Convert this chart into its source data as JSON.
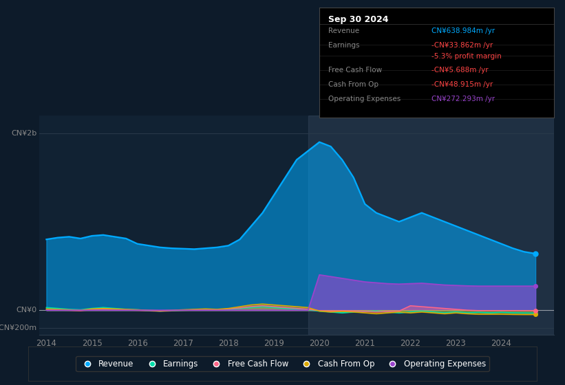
{
  "background_color": "#0d1b2a",
  "plot_bg_color": "#112233",
  "colors": {
    "revenue": "#00aaff",
    "earnings": "#00ddaa",
    "free_cash_flow": "#ff6688",
    "cash_from_op": "#ddaa00",
    "operating_expenses": "#9944cc"
  },
  "legend": [
    {
      "label": "Revenue",
      "color": "#00aaff"
    },
    {
      "label": "Earnings",
      "color": "#00ddaa"
    },
    {
      "label": "Free Cash Flow",
      "color": "#ff6688"
    },
    {
      "label": "Cash From Op",
      "color": "#ddaa00"
    },
    {
      "label": "Operating Expenses",
      "color": "#9944cc"
    }
  ],
  "info_box": {
    "title": "Sep 30 2024",
    "rows": [
      {
        "label": "Revenue",
        "value": "CN¥638.984m /yr",
        "label_color": "#888888",
        "value_color": "#00aaff"
      },
      {
        "label": "Earnings",
        "value": "-CN¥33.862m /yr",
        "label_color": "#888888",
        "value_color": "#ff4444"
      },
      {
        "label": "",
        "value": "-5.3% profit margin",
        "label_color": "#888888",
        "value_color": "#ff4444"
      },
      {
        "label": "Free Cash Flow",
        "value": "-CN¥5.688m /yr",
        "label_color": "#888888",
        "value_color": "#ff4444"
      },
      {
        "label": "Cash From Op",
        "value": "-CN¥48.915m /yr",
        "label_color": "#888888",
        "value_color": "#ff4444"
      },
      {
        "label": "Operating Expenses",
        "value": "CN¥272.293m /yr",
        "label_color": "#888888",
        "value_color": "#9944cc"
      }
    ]
  },
  "ylim": [
    -280000000,
    2200000000
  ],
  "ytick_labels": [
    "CN¥2b",
    "CN¥0",
    "-CN¥200m"
  ],
  "ytick_values": [
    2000000000,
    0,
    -200000000
  ],
  "shaded_region_start": 2019.75,
  "xtick_positions": [
    2014,
    2015,
    2016,
    2017,
    2018,
    2019,
    2020,
    2021,
    2022,
    2023,
    2024
  ],
  "years": [
    2014.0,
    2014.25,
    2014.5,
    2014.75,
    2015.0,
    2015.25,
    2015.5,
    2015.75,
    2016.0,
    2016.25,
    2016.5,
    2016.75,
    2017.0,
    2017.25,
    2017.5,
    2017.75,
    2018.0,
    2018.25,
    2018.5,
    2018.75,
    2019.0,
    2019.25,
    2019.5,
    2019.75,
    2020.0,
    2020.25,
    2020.5,
    2020.75,
    2021.0,
    2021.25,
    2021.5,
    2021.75,
    2022.0,
    2022.25,
    2022.5,
    2022.75,
    2023.0,
    2023.25,
    2023.5,
    2023.75,
    2024.0,
    2024.25,
    2024.5,
    2024.75
  ],
  "revenue": [
    800000000,
    820000000,
    830000000,
    810000000,
    840000000,
    850000000,
    830000000,
    810000000,
    750000000,
    730000000,
    710000000,
    700000000,
    695000000,
    690000000,
    700000000,
    710000000,
    730000000,
    800000000,
    950000000,
    1100000000,
    1300000000,
    1500000000,
    1700000000,
    1800000000,
    1900000000,
    1850000000,
    1700000000,
    1500000000,
    1200000000,
    1100000000,
    1050000000,
    1000000000,
    1050000000,
    1100000000,
    1050000000,
    1000000000,
    950000000,
    900000000,
    850000000,
    800000000,
    750000000,
    700000000,
    660000000,
    639000000
  ],
  "earnings": [
    30000000,
    20000000,
    10000000,
    5000000,
    20000000,
    30000000,
    20000000,
    10000000,
    5000000,
    -5000000,
    -10000000,
    -5000000,
    0,
    5000000,
    10000000,
    5000000,
    10000000,
    20000000,
    30000000,
    40000000,
    30000000,
    20000000,
    10000000,
    5000000,
    -10000000,
    -20000000,
    -30000000,
    -20000000,
    -15000000,
    -10000000,
    -20000000,
    -30000000,
    -20000000,
    -10000000,
    -20000000,
    -30000000,
    -20000000,
    -30000000,
    -25000000,
    -30000000,
    -25000000,
    -30000000,
    -32000000,
    -33862000
  ],
  "free_cash_flow": [
    10000000,
    5000000,
    0,
    -5000000,
    10000000,
    15000000,
    10000000,
    5000000,
    0,
    -5000000,
    -10000000,
    -5000000,
    0,
    5000000,
    10000000,
    5000000,
    15000000,
    25000000,
    40000000,
    50000000,
    40000000,
    30000000,
    20000000,
    10000000,
    -5000000,
    -10000000,
    -5000000,
    -10000000,
    -15000000,
    -20000000,
    -15000000,
    -10000000,
    50000000,
    40000000,
    30000000,
    20000000,
    10000000,
    0,
    -5000000,
    -5000000,
    -5000000,
    -5000000,
    -5688000,
    -5688000
  ],
  "cash_from_op": [
    15000000,
    10000000,
    5000000,
    0,
    15000000,
    20000000,
    15000000,
    10000000,
    5000000,
    0,
    -5000000,
    0,
    5000000,
    10000000,
    15000000,
    10000000,
    20000000,
    40000000,
    60000000,
    70000000,
    60000000,
    50000000,
    40000000,
    30000000,
    -10000000,
    -20000000,
    -15000000,
    -20000000,
    -30000000,
    -40000000,
    -30000000,
    -20000000,
    -30000000,
    -20000000,
    -30000000,
    -40000000,
    -30000000,
    -40000000,
    -45000000,
    -45000000,
    -45000000,
    -48000000,
    -48915000,
    -48915000
  ],
  "operating_expenses": [
    0,
    0,
    0,
    0,
    0,
    0,
    0,
    0,
    0,
    0,
    0,
    0,
    0,
    0,
    0,
    0,
    0,
    0,
    0,
    0,
    0,
    0,
    0,
    0,
    400000000,
    380000000,
    360000000,
    340000000,
    320000000,
    310000000,
    300000000,
    295000000,
    300000000,
    305000000,
    295000000,
    285000000,
    280000000,
    275000000,
    272293000,
    272293000,
    272293000,
    272293000,
    272293000,
    272293000
  ]
}
